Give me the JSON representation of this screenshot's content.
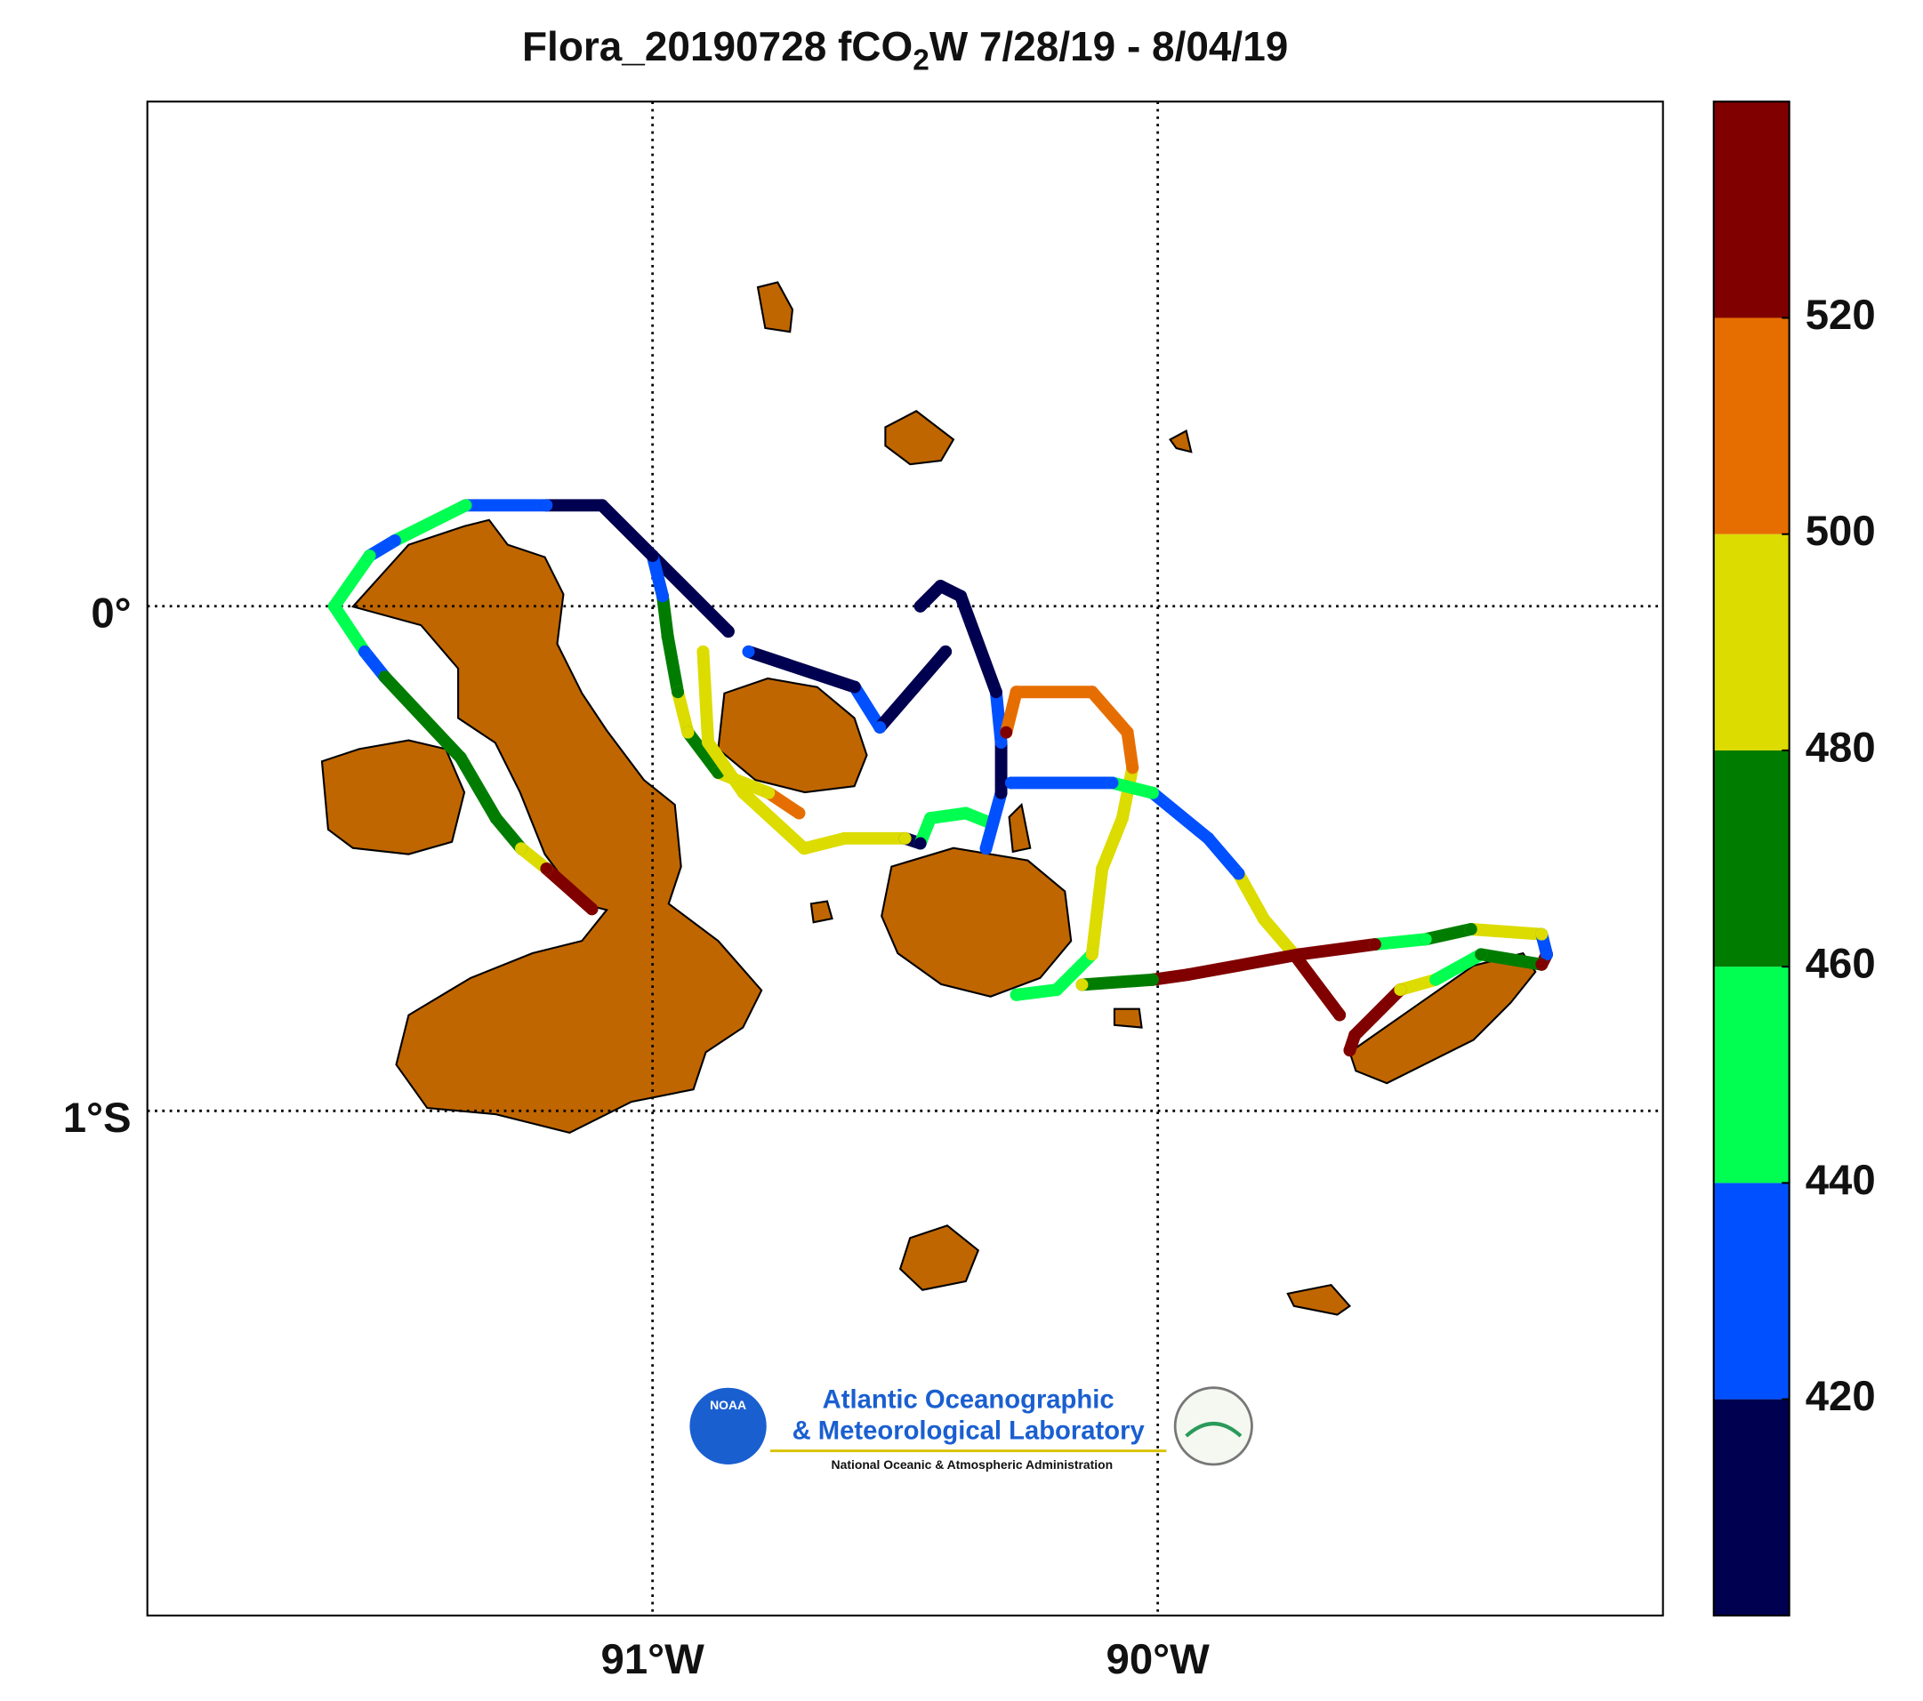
{
  "chart_data": {
    "type": "map-track",
    "title": {
      "prefix": "Flora_20190728 fCO",
      "sub": "2",
      "suffix": "W 7/28/19 - 8/04/19"
    },
    "xlim": [
      -92,
      -89
    ],
    "ylim": [
      -2,
      1
    ],
    "xticks": [
      {
        "value": -91,
        "label": "91°W"
      },
      {
        "value": -90,
        "label": "90°W"
      }
    ],
    "yticks": [
      {
        "value": 0,
        "label": "0°"
      },
      {
        "value": -1,
        "label": "1°S"
      }
    ],
    "grid": true,
    "colorbar": {
      "lim": [
        400,
        540
      ],
      "ticks": [
        420,
        440,
        460,
        480,
        500,
        520
      ],
      "colors": [
        "#000050",
        "#0050ff",
        "#00ff50",
        "#007d00",
        "#dcdc00",
        "#e66e00",
        "#800000"
      ]
    },
    "tracks": [
      {
        "lon": [
          -91.12,
          -91.21,
          -91.26,
          -91.31,
          -91.38,
          -91.53,
          -91.57,
          -91.63,
          -91.56,
          -91.51,
          -91.37,
          -91.21,
          -91.1,
          -91.0,
          -90.85
        ],
        "lat": [
          -0.6,
          -0.52,
          -0.48,
          -0.42,
          -0.3,
          -0.14,
          -0.09,
          0.0,
          0.1,
          0.13,
          0.2,
          0.2,
          0.2,
          0.1,
          -0.05
        ],
        "fco2": [
          530,
          530,
          490,
          470,
          470,
          470,
          430,
          450,
          450,
          430,
          450,
          430,
          410,
          410,
          410
        ]
      },
      {
        "lon": [
          -91.0,
          -90.98,
          -90.97,
          -90.95,
          -90.93,
          -90.87,
          -90.77,
          -90.71
        ],
        "lat": [
          0.1,
          0.02,
          -0.06,
          -0.17,
          -0.25,
          -0.33,
          -0.37,
          -0.41
        ],
        "fco2": [
          410,
          430,
          470,
          470,
          490,
          470,
          490,
          510
        ]
      },
      {
        "lon": [
          -90.9,
          -90.89,
          -90.82,
          -90.7,
          -90.62,
          -90.5,
          -90.47,
          -90.45,
          -90.38,
          -90.33
        ],
        "lat": [
          -0.09,
          -0.27,
          -0.37,
          -0.48,
          -0.46,
          -0.46,
          -0.47,
          -0.42,
          -0.41,
          -0.43
        ],
        "fco2": [
          490,
          490,
          490,
          490,
          490,
          490,
          410,
          450,
          450,
          450
        ]
      },
      {
        "lon": [
          -90.81,
          -90.6,
          -90.55,
          -90.42
        ],
        "lat": [
          -0.09,
          -0.16,
          -0.24,
          -0.09
        ],
        "fco2": [
          430,
          410,
          430,
          410
        ]
      },
      {
        "lon": [
          -90.47,
          -90.43,
          -90.39,
          -90.32,
          -90.31,
          -90.31,
          -90.34
        ],
        "lat": [
          0.0,
          0.04,
          0.02,
          -0.17,
          -0.27,
          -0.37,
          -0.48
        ],
        "fco2": [
          410,
          410,
          410,
          410,
          430,
          410,
          430
        ]
      },
      {
        "lon": [
          -90.3,
          -90.28,
          -90.13,
          -90.06,
          -90.05,
          -90.07,
          -90.11,
          -90.13,
          -90.2,
          -90.28
        ],
        "lat": [
          -0.25,
          -0.17,
          -0.17,
          -0.25,
          -0.32,
          -0.42,
          -0.52,
          -0.69,
          -0.76,
          -0.77
        ],
        "fco2": [
          530,
          510,
          510,
          510,
          510,
          490,
          490,
          490,
          450,
          450
        ]
      },
      {
        "lon": [
          -90.29,
          -90.09,
          -90.01,
          -89.9,
          -89.84,
          -89.79,
          -89.73,
          -89.64
        ],
        "lat": [
          -0.35,
          -0.35,
          -0.37,
          -0.46,
          -0.53,
          -0.62,
          -0.69,
          -0.81
        ],
        "fco2": [
          430,
          430,
          450,
          430,
          430,
          490,
          490,
          530
        ]
      },
      {
        "lon": [
          -90.15,
          -90.01,
          -89.94,
          -89.72,
          -89.57,
          -89.47,
          -89.38,
          -89.24,
          -89.23,
          -89.24,
          -89.36,
          -89.45,
          -89.52,
          -89.61,
          -89.62
        ],
        "lat": [
          -0.75,
          -0.74,
          -0.73,
          -0.69,
          -0.67,
          -0.66,
          -0.64,
          -0.65,
          -0.69,
          -0.71,
          -0.69,
          -0.74,
          -0.76,
          -0.85,
          -0.88
        ],
        "fco2": [
          490,
          470,
          530,
          530,
          530,
          450,
          470,
          490,
          430,
          530,
          470,
          450,
          490,
          530,
          530
        ]
      }
    ]
  },
  "logo": {
    "badge": "NOAA",
    "line1": "Atlantic Oceanographic",
    "line2": "& Meteorological Laboratory",
    "line3": "National Oceanic & Atmospheric Administration"
  }
}
